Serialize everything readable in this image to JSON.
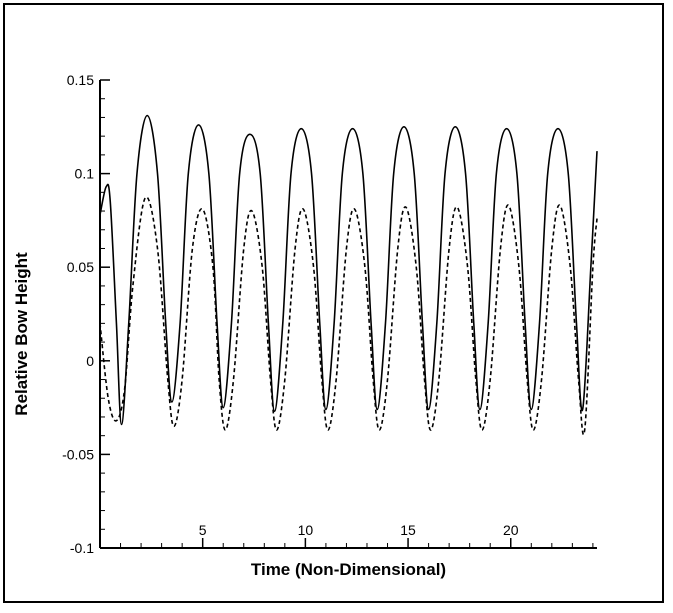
{
  "chart_data": {
    "type": "line",
    "title": "",
    "xlabel": "Time (Non-Dimensional)",
    "ylabel": "Relative Bow Height",
    "xlim": [
      0,
      24.2
    ],
    "ylim": [
      -0.1,
      0.15
    ],
    "xticks": [
      5,
      10,
      15,
      20
    ],
    "yticks": [
      -0.1,
      -0.05,
      0,
      0.05,
      0.1,
      0.15
    ],
    "xtick_labels": [
      "5",
      "10",
      "15",
      "20"
    ],
    "ytick_labels": [
      "-0.1",
      "-0.05",
      "0",
      "0.05",
      "0.1",
      "0.15"
    ],
    "grid": false,
    "legend": "none",
    "series": [
      {
        "style": "solid",
        "color": "#000000",
        "points": [
          [
            0,
            0.078
          ],
          [
            0.3,
            0.093
          ],
          [
            0.5,
            0.085
          ],
          [
            0.8,
            0.02
          ],
          [
            1.05,
            -0.034
          ],
          [
            1.4,
            0.02
          ],
          [
            1.8,
            0.1
          ],
          [
            2.3,
            0.131
          ],
          [
            2.8,
            0.1
          ],
          [
            3.2,
            0.02
          ],
          [
            3.5,
            -0.022
          ],
          [
            3.9,
            0.02
          ],
          [
            4.3,
            0.1
          ],
          [
            4.8,
            0.126
          ],
          [
            5.3,
            0.1
          ],
          [
            5.7,
            0.02
          ],
          [
            6.0,
            -0.025
          ],
          [
            6.4,
            0.02
          ],
          [
            6.8,
            0.1
          ],
          [
            7.3,
            0.121
          ],
          [
            7.8,
            0.1
          ],
          [
            8.2,
            0.02
          ],
          [
            8.5,
            -0.027
          ],
          [
            8.9,
            0.02
          ],
          [
            9.3,
            0.1
          ],
          [
            9.8,
            0.124
          ],
          [
            10.3,
            0.1
          ],
          [
            10.7,
            0.02
          ],
          [
            11.0,
            -0.026
          ],
          [
            11.4,
            0.02
          ],
          [
            11.8,
            0.1
          ],
          [
            12.3,
            0.124
          ],
          [
            12.8,
            0.1
          ],
          [
            13.2,
            0.02
          ],
          [
            13.5,
            -0.026
          ],
          [
            13.9,
            0.02
          ],
          [
            14.3,
            0.1
          ],
          [
            14.8,
            0.125
          ],
          [
            15.3,
            0.1
          ],
          [
            15.7,
            0.02
          ],
          [
            16.0,
            -0.026
          ],
          [
            16.4,
            0.02
          ],
          [
            16.8,
            0.1
          ],
          [
            17.3,
            0.125
          ],
          [
            17.8,
            0.1
          ],
          [
            18.2,
            0.02
          ],
          [
            18.5,
            -0.026
          ],
          [
            18.9,
            0.02
          ],
          [
            19.3,
            0.1
          ],
          [
            19.8,
            0.124
          ],
          [
            20.3,
            0.1
          ],
          [
            20.7,
            0.02
          ],
          [
            21.0,
            -0.026
          ],
          [
            21.4,
            0.02
          ],
          [
            21.8,
            0.1
          ],
          [
            22.3,
            0.124
          ],
          [
            22.8,
            0.1
          ],
          [
            23.2,
            0.02
          ],
          [
            23.5,
            -0.026
          ],
          [
            23.9,
            0.05
          ],
          [
            24.2,
            0.112
          ]
        ]
      },
      {
        "style": "dashed",
        "color": "#000000",
        "points": [
          [
            0,
            0.02
          ],
          [
            0.4,
            -0.02
          ],
          [
            0.8,
            -0.032
          ],
          [
            1.2,
            -0.015
          ],
          [
            1.6,
            0.04
          ],
          [
            2.2,
            0.087
          ],
          [
            2.8,
            0.06
          ],
          [
            3.3,
            -0.01
          ],
          [
            3.6,
            -0.035
          ],
          [
            4.0,
            -0.01
          ],
          [
            4.5,
            0.06
          ],
          [
            5.0,
            0.081
          ],
          [
            5.5,
            0.05
          ],
          [
            5.8,
            -0.01
          ],
          [
            6.1,
            -0.037
          ],
          [
            6.5,
            -0.01
          ],
          [
            7.0,
            0.06
          ],
          [
            7.4,
            0.08
          ],
          [
            7.9,
            0.05
          ],
          [
            8.3,
            -0.01
          ],
          [
            8.6,
            -0.037
          ],
          [
            9.0,
            -0.01
          ],
          [
            9.5,
            0.06
          ],
          [
            9.9,
            0.081
          ],
          [
            10.4,
            0.05
          ],
          [
            10.8,
            -0.01
          ],
          [
            11.1,
            -0.037
          ],
          [
            11.5,
            -0.01
          ],
          [
            12.0,
            0.06
          ],
          [
            12.4,
            0.081
          ],
          [
            12.9,
            0.05
          ],
          [
            13.3,
            -0.01
          ],
          [
            13.6,
            -0.037
          ],
          [
            14.0,
            -0.01
          ],
          [
            14.5,
            0.06
          ],
          [
            14.9,
            0.082
          ],
          [
            15.4,
            0.05
          ],
          [
            15.8,
            -0.01
          ],
          [
            16.1,
            -0.037
          ],
          [
            16.5,
            -0.01
          ],
          [
            17.0,
            0.06
          ],
          [
            17.4,
            0.082
          ],
          [
            17.9,
            0.05
          ],
          [
            18.3,
            -0.01
          ],
          [
            18.6,
            -0.037
          ],
          [
            19.0,
            -0.01
          ],
          [
            19.5,
            0.06
          ],
          [
            19.9,
            0.083
          ],
          [
            20.4,
            0.05
          ],
          [
            20.8,
            -0.01
          ],
          [
            21.1,
            -0.037
          ],
          [
            21.5,
            -0.01
          ],
          [
            22.0,
            0.06
          ],
          [
            22.4,
            0.083
          ],
          [
            22.9,
            0.05
          ],
          [
            23.3,
            -0.01
          ],
          [
            23.6,
            -0.037
          ],
          [
            24.0,
            0.05
          ],
          [
            24.2,
            0.076
          ]
        ]
      }
    ]
  }
}
